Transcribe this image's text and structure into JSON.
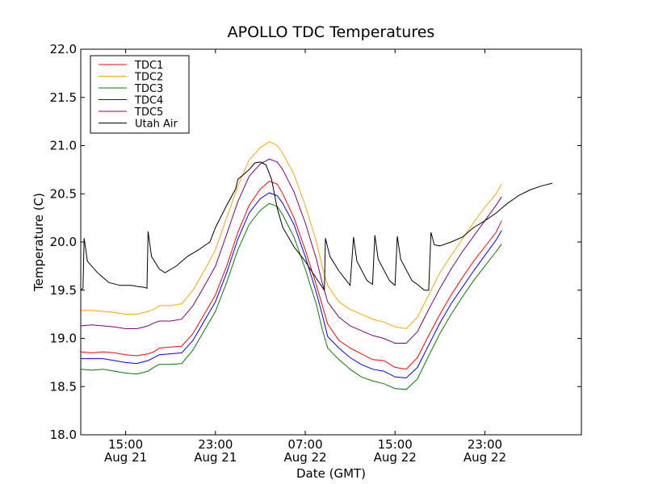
{
  "chart_data": {
    "type": "line",
    "title": "APOLLO TDC Temperatures",
    "xlabel": "Date (GMT)",
    "ylabel": "Temperature (C)",
    "x_unit": "hours since Aug 21 00:00 GMT",
    "xlim": [
      11.0,
      55.6
    ],
    "ylim": [
      18.0,
      22.0
    ],
    "y_ticks": [
      18.0,
      18.5,
      19.0,
      19.5,
      20.0,
      20.5,
      21.0,
      21.5,
      22.0
    ],
    "y_tick_labels": [
      "18.0",
      "18.5",
      "19.0",
      "19.5",
      "20.0",
      "20.5",
      "21.0",
      "21.5",
      "22.0"
    ],
    "x_ticks": [
      {
        "x": 15,
        "time": "15:00",
        "date": "Aug 21"
      },
      {
        "x": 23,
        "time": "23:00",
        "date": "Aug 21"
      },
      {
        "x": 31,
        "time": "07:00",
        "date": "Aug 22"
      },
      {
        "x": 39,
        "time": "15:00",
        "date": "Aug 22"
      },
      {
        "x": 47,
        "time": "23:00",
        "date": "Aug 22"
      }
    ],
    "legend_position": "top-left",
    "series": [
      {
        "name": "TDC1",
        "color": "#ff0000",
        "points": [
          [
            11.0,
            18.86
          ],
          [
            12.0,
            18.85
          ],
          [
            13.0,
            18.86
          ],
          [
            14.0,
            18.85
          ],
          [
            15.0,
            18.83
          ],
          [
            16.0,
            18.82
          ],
          [
            17.0,
            18.84
          ],
          [
            17.5,
            18.86
          ],
          [
            18.0,
            18.9
          ],
          [
            19.0,
            18.91
          ],
          [
            20.0,
            18.92
          ],
          [
            21.0,
            19.05
          ],
          [
            22.0,
            19.25
          ],
          [
            23.0,
            19.45
          ],
          [
            24.0,
            19.75
          ],
          [
            25.0,
            20.1
          ],
          [
            26.0,
            20.38
          ],
          [
            27.0,
            20.55
          ],
          [
            27.8,
            20.63
          ],
          [
            28.5,
            20.6
          ],
          [
            29.0,
            20.5
          ],
          [
            30.0,
            20.25
          ],
          [
            31.0,
            19.92
          ],
          [
            32.0,
            19.55
          ],
          [
            32.5,
            19.35
          ],
          [
            33.0,
            19.15
          ],
          [
            34.0,
            18.98
          ],
          [
            35.0,
            18.9
          ],
          [
            36.0,
            18.84
          ],
          [
            37.0,
            18.78
          ],
          [
            38.0,
            18.77
          ],
          [
            39.0,
            18.7
          ],
          [
            40.0,
            18.68
          ],
          [
            41.0,
            18.8
          ],
          [
            42.0,
            19.03
          ],
          [
            43.0,
            19.25
          ],
          [
            44.0,
            19.45
          ],
          [
            45.0,
            19.63
          ],
          [
            46.0,
            19.8
          ],
          [
            47.0,
            19.95
          ],
          [
            48.0,
            20.1
          ],
          [
            48.5,
            20.22
          ]
        ]
      },
      {
        "name": "TDC2",
        "color": "#ffa500",
        "points": [
          [
            11.0,
            19.29
          ],
          [
            12.0,
            19.29
          ],
          [
            13.0,
            19.28
          ],
          [
            14.0,
            19.27
          ],
          [
            15.0,
            19.25
          ],
          [
            16.0,
            19.25
          ],
          [
            17.0,
            19.28
          ],
          [
            17.5,
            19.3
          ],
          [
            18.0,
            19.34
          ],
          [
            19.0,
            19.34
          ],
          [
            20.0,
            19.36
          ],
          [
            21.0,
            19.5
          ],
          [
            22.0,
            19.7
          ],
          [
            23.0,
            19.92
          ],
          [
            24.0,
            20.25
          ],
          [
            25.0,
            20.58
          ],
          [
            26.0,
            20.85
          ],
          [
            27.0,
            20.98
          ],
          [
            27.8,
            21.04
          ],
          [
            28.5,
            21.0
          ],
          [
            29.0,
            20.92
          ],
          [
            30.0,
            20.7
          ],
          [
            31.0,
            20.38
          ],
          [
            32.0,
            20.0
          ],
          [
            32.5,
            19.75
          ],
          [
            33.0,
            19.55
          ],
          [
            34.0,
            19.38
          ],
          [
            35.0,
            19.3
          ],
          [
            36.0,
            19.25
          ],
          [
            37.0,
            19.2
          ],
          [
            38.0,
            19.17
          ],
          [
            39.0,
            19.12
          ],
          [
            40.0,
            19.1
          ],
          [
            41.0,
            19.22
          ],
          [
            42.0,
            19.45
          ],
          [
            43.0,
            19.68
          ],
          [
            44.0,
            19.86
          ],
          [
            45.0,
            20.03
          ],
          [
            46.0,
            20.2
          ],
          [
            47.0,
            20.36
          ],
          [
            48.0,
            20.5
          ],
          [
            48.5,
            20.6
          ]
        ]
      },
      {
        "name": "TDC3",
        "color": "#008000",
        "points": [
          [
            11.0,
            18.68
          ],
          [
            12.0,
            18.67
          ],
          [
            13.0,
            18.68
          ],
          [
            14.0,
            18.66
          ],
          [
            15.0,
            18.64
          ],
          [
            16.0,
            18.63
          ],
          [
            17.0,
            18.66
          ],
          [
            17.5,
            18.7
          ],
          [
            18.0,
            18.73
          ],
          [
            19.0,
            18.73
          ],
          [
            20.0,
            18.74
          ],
          [
            21.0,
            18.88
          ],
          [
            22.0,
            19.08
          ],
          [
            23.0,
            19.28
          ],
          [
            24.0,
            19.58
          ],
          [
            25.0,
            19.92
          ],
          [
            26.0,
            20.18
          ],
          [
            27.0,
            20.33
          ],
          [
            27.8,
            20.4
          ],
          [
            28.5,
            20.37
          ],
          [
            29.0,
            20.28
          ],
          [
            30.0,
            20.05
          ],
          [
            31.0,
            19.72
          ],
          [
            32.0,
            19.35
          ],
          [
            32.5,
            19.1
          ],
          [
            33.0,
            18.9
          ],
          [
            34.0,
            18.78
          ],
          [
            35.0,
            18.68
          ],
          [
            36.0,
            18.6
          ],
          [
            37.0,
            18.56
          ],
          [
            38.0,
            18.53
          ],
          [
            39.0,
            18.48
          ],
          [
            40.0,
            18.47
          ],
          [
            41.0,
            18.58
          ],
          [
            42.0,
            18.82
          ],
          [
            43.0,
            19.05
          ],
          [
            44.0,
            19.25
          ],
          [
            45.0,
            19.43
          ],
          [
            46.0,
            19.6
          ],
          [
            47.0,
            19.75
          ],
          [
            48.0,
            19.9
          ],
          [
            48.5,
            19.98
          ]
        ]
      },
      {
        "name": "TDC4",
        "color": "#0000ff",
        "points": [
          [
            11.0,
            18.79
          ],
          [
            12.0,
            18.79
          ],
          [
            13.0,
            18.79
          ],
          [
            14.0,
            18.77
          ],
          [
            15.0,
            18.75
          ],
          [
            16.0,
            18.74
          ],
          [
            17.0,
            18.77
          ],
          [
            17.5,
            18.8
          ],
          [
            18.0,
            18.83
          ],
          [
            19.0,
            18.84
          ],
          [
            20.0,
            18.85
          ],
          [
            21.0,
            18.98
          ],
          [
            22.0,
            19.18
          ],
          [
            23.0,
            19.38
          ],
          [
            24.0,
            19.68
          ],
          [
            25.0,
            20.03
          ],
          [
            26.0,
            20.3
          ],
          [
            27.0,
            20.45
          ],
          [
            27.8,
            20.51
          ],
          [
            28.5,
            20.48
          ],
          [
            29.0,
            20.4
          ],
          [
            30.0,
            20.18
          ],
          [
            31.0,
            19.85
          ],
          [
            32.0,
            19.47
          ],
          [
            32.5,
            19.25
          ],
          [
            33.0,
            19.02
          ],
          [
            34.0,
            18.9
          ],
          [
            35.0,
            18.8
          ],
          [
            36.0,
            18.73
          ],
          [
            37.0,
            18.68
          ],
          [
            38.0,
            18.66
          ],
          [
            39.0,
            18.6
          ],
          [
            40.0,
            18.59
          ],
          [
            41.0,
            18.7
          ],
          [
            42.0,
            18.93
          ],
          [
            43.0,
            19.16
          ],
          [
            44.0,
            19.36
          ],
          [
            45.0,
            19.53
          ],
          [
            46.0,
            19.7
          ],
          [
            47.0,
            19.86
          ],
          [
            48.0,
            20.02
          ],
          [
            48.5,
            20.12
          ]
        ]
      },
      {
        "name": "TDC5",
        "color": "#800080",
        "points": [
          [
            11.0,
            19.13
          ],
          [
            12.0,
            19.14
          ],
          [
            13.0,
            19.13
          ],
          [
            14.0,
            19.12
          ],
          [
            15.0,
            19.1
          ],
          [
            16.0,
            19.1
          ],
          [
            17.0,
            19.13
          ],
          [
            17.5,
            19.16
          ],
          [
            18.0,
            19.18
          ],
          [
            19.0,
            19.18
          ],
          [
            20.0,
            19.2
          ],
          [
            21.0,
            19.34
          ],
          [
            22.0,
            19.54
          ],
          [
            23.0,
            19.75
          ],
          [
            24.0,
            20.08
          ],
          [
            25.0,
            20.42
          ],
          [
            26.0,
            20.68
          ],
          [
            27.0,
            20.81
          ],
          [
            27.8,
            20.86
          ],
          [
            28.5,
            20.83
          ],
          [
            29.0,
            20.75
          ],
          [
            30.0,
            20.52
          ],
          [
            31.0,
            20.2
          ],
          [
            32.0,
            19.82
          ],
          [
            32.5,
            19.58
          ],
          [
            33.0,
            19.38
          ],
          [
            34.0,
            19.22
          ],
          [
            35.0,
            19.13
          ],
          [
            36.0,
            19.08
          ],
          [
            37.0,
            19.03
          ],
          [
            38.0,
            19.0
          ],
          [
            39.0,
            18.95
          ],
          [
            40.0,
            18.95
          ],
          [
            41.0,
            19.07
          ],
          [
            42.0,
            19.3
          ],
          [
            43.0,
            19.52
          ],
          [
            44.0,
            19.72
          ],
          [
            45.0,
            19.9
          ],
          [
            46.0,
            20.06
          ],
          [
            47.0,
            20.22
          ],
          [
            48.0,
            20.38
          ],
          [
            48.5,
            20.47
          ]
        ]
      },
      {
        "name": "Utah Air",
        "color": "#000000",
        "points": [
          [
            11.0,
            19.5
          ],
          [
            11.2,
            19.52
          ],
          [
            11.3,
            20.04
          ],
          [
            11.6,
            19.8
          ],
          [
            12.5,
            19.68
          ],
          [
            13.5,
            19.58
          ],
          [
            14.5,
            19.55
          ],
          [
            15.5,
            19.55
          ],
          [
            16.0,
            19.54
          ],
          [
            16.7,
            19.53
          ],
          [
            16.9,
            19.52
          ],
          [
            17.0,
            20.11
          ],
          [
            17.3,
            19.85
          ],
          [
            18.0,
            19.72
          ],
          [
            18.5,
            19.68
          ],
          [
            19.5,
            19.75
          ],
          [
            20.5,
            19.85
          ],
          [
            21.5,
            19.92
          ],
          [
            22.5,
            20.0
          ],
          [
            23.0,
            20.15
          ],
          [
            24.0,
            20.38
          ],
          [
            24.8,
            20.55
          ],
          [
            25.0,
            20.65
          ],
          [
            25.5,
            20.7
          ],
          [
            26.0,
            20.75
          ],
          [
            26.5,
            20.82
          ],
          [
            27.0,
            20.83
          ],
          [
            27.5,
            20.8
          ],
          [
            28.0,
            20.65
          ],
          [
            28.5,
            20.35
          ],
          [
            29.0,
            20.15
          ],
          [
            30.0,
            19.95
          ],
          [
            31.0,
            19.8
          ],
          [
            32.0,
            19.62
          ],
          [
            32.7,
            19.5
          ],
          [
            32.8,
            20.04
          ],
          [
            33.2,
            19.85
          ],
          [
            34.0,
            19.7
          ],
          [
            35.0,
            19.55
          ],
          [
            35.3,
            20.05
          ],
          [
            35.6,
            19.8
          ],
          [
            36.5,
            19.6
          ],
          [
            37.0,
            19.56
          ],
          [
            37.2,
            20.07
          ],
          [
            37.5,
            19.82
          ],
          [
            38.5,
            19.6
          ],
          [
            39.0,
            19.55
          ],
          [
            39.2,
            20.06
          ],
          [
            39.5,
            19.82
          ],
          [
            40.5,
            19.6
          ],
          [
            41.0,
            19.56
          ],
          [
            41.6,
            19.5
          ],
          [
            42.0,
            19.5
          ],
          [
            42.2,
            20.1
          ],
          [
            42.5,
            19.97
          ],
          [
            43.0,
            19.96
          ],
          [
            44.0,
            20.0
          ],
          [
            45.0,
            20.05
          ],
          [
            46.0,
            20.15
          ],
          [
            47.0,
            20.22
          ],
          [
            48.0,
            20.3
          ],
          [
            49.0,
            20.4
          ],
          [
            50.0,
            20.48
          ],
          [
            51.0,
            20.54
          ],
          [
            52.0,
            20.58
          ],
          [
            53.0,
            20.61
          ]
        ]
      }
    ]
  }
}
